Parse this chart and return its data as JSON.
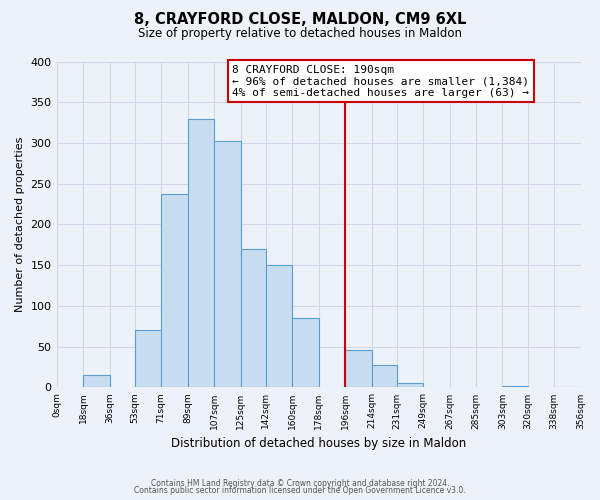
{
  "title": "8, CRAYFORD CLOSE, MALDON, CM9 6XL",
  "subtitle": "Size of property relative to detached houses in Maldon",
  "xlabel": "Distribution of detached houses by size in Maldon",
  "ylabel": "Number of detached properties",
  "bar_color": "#c8ddf0",
  "bar_edge_color": "#5a9fd4",
  "background_color": "#edf2f9",
  "grid_color": "#d0d8e8",
  "bin_edges": [
    0,
    18,
    36,
    53,
    71,
    89,
    107,
    125,
    142,
    160,
    178,
    196,
    214,
    231,
    249,
    267,
    285,
    303,
    320,
    338,
    356
  ],
  "bin_labels": [
    "0sqm",
    "18sqm",
    "36sqm",
    "53sqm",
    "71sqm",
    "89sqm",
    "107sqm",
    "125sqm",
    "142sqm",
    "160sqm",
    "178sqm",
    "196sqm",
    "214sqm",
    "231sqm",
    "249sqm",
    "267sqm",
    "285sqm",
    "303sqm",
    "320sqm",
    "338sqm",
    "356sqm"
  ],
  "counts": [
    0,
    15,
    0,
    70,
    238,
    330,
    303,
    170,
    150,
    85,
    0,
    46,
    27,
    6,
    0,
    0,
    0,
    2,
    0,
    1
  ],
  "vline_x": 196,
  "vline_color": "#cc0000",
  "annotation_title": "8 CRAYFORD CLOSE: 190sqm",
  "annotation_line1": "← 96% of detached houses are smaller (1,384)",
  "annotation_line2": "4% of semi-detached houses are larger (63) →",
  "footer1": "Contains HM Land Registry data © Crown copyright and database right 2024.",
  "footer2": "Contains public sector information licensed under the Open Government Licence v3.0.",
  "ylim": [
    0,
    400
  ],
  "yticks": [
    0,
    50,
    100,
    150,
    200,
    250,
    300,
    350,
    400
  ]
}
